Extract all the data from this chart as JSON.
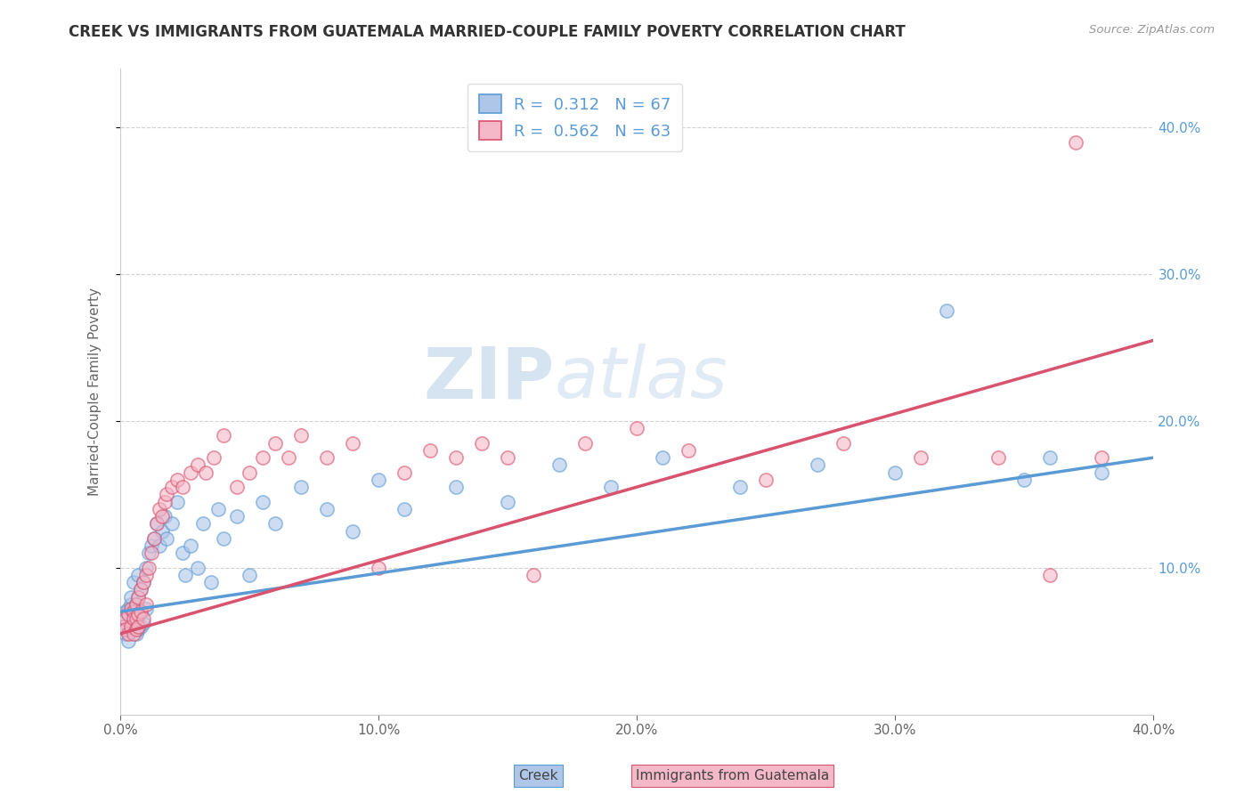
{
  "title": "CREEK VS IMMIGRANTS FROM GUATEMALA MARRIED-COUPLE FAMILY POVERTY CORRELATION CHART",
  "source": "Source: ZipAtlas.com",
  "ylabel": "Married-Couple Family Poverty",
  "creek_label": "Creek",
  "guatemala_label": "Immigrants from Guatemala",
  "creek_R": 0.312,
  "creek_N": 67,
  "guatemala_R": 0.562,
  "guatemala_N": 63,
  "xlim": [
    0.0,
    0.4
  ],
  "ylim": [
    0.0,
    0.44
  ],
  "creek_color": "#aec6e8",
  "creek_line_color": "#5b9bd5",
  "guatemala_color": "#f4b8c8",
  "guatemala_line_color": "#d9526e",
  "watermark_ZIP": "ZIP",
  "watermark_atlas": "atlas",
  "background_color": "#ffffff",
  "grid_color": "#cccccc",
  "creek_x": [
    0.001,
    0.002,
    0.002,
    0.003,
    0.003,
    0.003,
    0.004,
    0.004,
    0.004,
    0.005,
    0.005,
    0.005,
    0.005,
    0.006,
    0.006,
    0.006,
    0.006,
    0.007,
    0.007,
    0.007,
    0.007,
    0.008,
    0.008,
    0.008,
    0.009,
    0.009,
    0.01,
    0.01,
    0.011,
    0.012,
    0.013,
    0.014,
    0.015,
    0.016,
    0.017,
    0.018,
    0.02,
    0.022,
    0.024,
    0.025,
    0.027,
    0.03,
    0.032,
    0.035,
    0.038,
    0.04,
    0.045,
    0.05,
    0.055,
    0.06,
    0.07,
    0.08,
    0.09,
    0.1,
    0.11,
    0.13,
    0.15,
    0.17,
    0.19,
    0.21,
    0.24,
    0.27,
    0.3,
    0.32,
    0.35,
    0.36,
    0.38
  ],
  "creek_y": [
    0.065,
    0.055,
    0.07,
    0.06,
    0.072,
    0.05,
    0.075,
    0.06,
    0.08,
    0.065,
    0.072,
    0.058,
    0.09,
    0.07,
    0.068,
    0.075,
    0.055,
    0.08,
    0.065,
    0.095,
    0.058,
    0.085,
    0.07,
    0.06,
    0.09,
    0.062,
    0.1,
    0.072,
    0.11,
    0.115,
    0.12,
    0.13,
    0.115,
    0.125,
    0.135,
    0.12,
    0.13,
    0.145,
    0.11,
    0.095,
    0.115,
    0.1,
    0.13,
    0.09,
    0.14,
    0.12,
    0.135,
    0.095,
    0.145,
    0.13,
    0.155,
    0.14,
    0.125,
    0.16,
    0.14,
    0.155,
    0.145,
    0.17,
    0.155,
    0.175,
    0.155,
    0.17,
    0.165,
    0.275,
    0.16,
    0.175,
    0.165
  ],
  "guatemala_x": [
    0.001,
    0.002,
    0.002,
    0.003,
    0.003,
    0.004,
    0.004,
    0.005,
    0.005,
    0.005,
    0.006,
    0.006,
    0.006,
    0.007,
    0.007,
    0.007,
    0.008,
    0.008,
    0.009,
    0.009,
    0.01,
    0.01,
    0.011,
    0.012,
    0.013,
    0.014,
    0.015,
    0.016,
    0.017,
    0.018,
    0.02,
    0.022,
    0.024,
    0.027,
    0.03,
    0.033,
    0.036,
    0.04,
    0.045,
    0.05,
    0.055,
    0.06,
    0.065,
    0.07,
    0.08,
    0.09,
    0.1,
    0.11,
    0.12,
    0.13,
    0.14,
    0.15,
    0.16,
    0.18,
    0.2,
    0.22,
    0.25,
    0.28,
    0.31,
    0.34,
    0.36,
    0.37,
    0.38
  ],
  "guatemala_y": [
    0.06,
    0.065,
    0.058,
    0.068,
    0.055,
    0.072,
    0.06,
    0.07,
    0.065,
    0.055,
    0.075,
    0.065,
    0.058,
    0.08,
    0.068,
    0.06,
    0.085,
    0.07,
    0.09,
    0.065,
    0.095,
    0.075,
    0.1,
    0.11,
    0.12,
    0.13,
    0.14,
    0.135,
    0.145,
    0.15,
    0.155,
    0.16,
    0.155,
    0.165,
    0.17,
    0.165,
    0.175,
    0.19,
    0.155,
    0.165,
    0.175,
    0.185,
    0.175,
    0.19,
    0.175,
    0.185,
    0.1,
    0.165,
    0.18,
    0.175,
    0.185,
    0.175,
    0.095,
    0.185,
    0.195,
    0.18,
    0.16,
    0.185,
    0.175,
    0.175,
    0.095,
    0.39,
    0.175
  ]
}
